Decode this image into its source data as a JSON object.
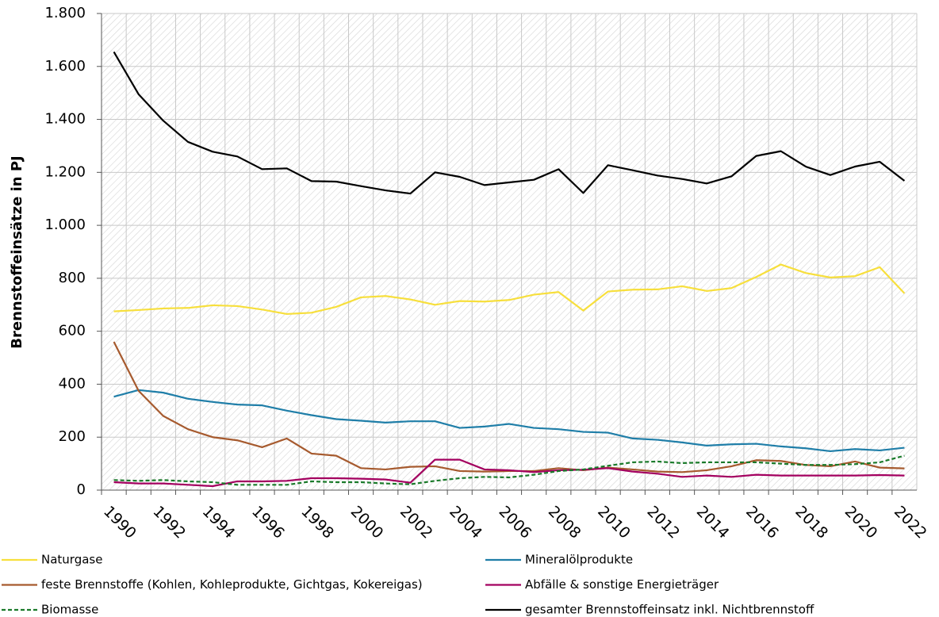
{
  "chart_data": {
    "type": "line",
    "y_label": "Brennstoffeinsätze in PJ",
    "categories": [
      "1990",
      null,
      "1992",
      null,
      "1994",
      null,
      "1996",
      null,
      "1998",
      null,
      "2000",
      null,
      "2002",
      null,
      "2004",
      null,
      "2006",
      null,
      "2008",
      null,
      "2010",
      null,
      "2012",
      null,
      "2014",
      null,
      "2016",
      null,
      "2018",
      null,
      "2020",
      null,
      "2022"
    ],
    "ylim": [
      0,
      1800
    ],
    "yticks": [
      0,
      200,
      400,
      600,
      800,
      {
        "value": 1000,
        "label": "1.000"
      },
      {
        "value": 1200,
        "label": "1.200"
      },
      {
        "value": 1400,
        "label": "1.400"
      },
      {
        "value": 1600,
        "label": "1.600"
      },
      {
        "value": 1800,
        "label": "1.800"
      }
    ],
    "grid": true,
    "legend": "bottom",
    "series": [
      {
        "name": "Naturgase",
        "color": "#f7df3c",
        "values": [
          675,
          680,
          686,
          688,
          698,
          695,
          682,
          665,
          670,
          692,
          728,
          733,
          720,
          700,
          714,
          712,
          718,
          738,
          748,
          678,
          750,
          757,
          758,
          770,
          752,
          763,
          805,
          852,
          820,
          803,
          808,
          842,
          743
        ]
      },
      {
        "name": "Mineralölprodukte",
        "color": "#1f7ea8",
        "values": [
          353,
          378,
          368,
          345,
          333,
          323,
          320,
          300,
          283,
          268,
          262,
          255,
          260,
          260,
          235,
          240,
          250,
          235,
          230,
          220,
          217,
          195,
          190,
          180,
          168,
          173,
          175,
          165,
          158,
          147,
          155,
          150,
          160
        ]
      },
      {
        "name": "feste Brennstoffe (Kohlen, Kohleprodukte, Gichtgas, Kokereigas)",
        "color": "#a65a2e",
        "values": [
          560,
          375,
          280,
          230,
          200,
          188,
          162,
          195,
          138,
          130,
          83,
          78,
          88,
          90,
          72,
          70,
          72,
          72,
          83,
          75,
          85,
          78,
          70,
          68,
          75,
          90,
          113,
          110,
          95,
          90,
          108,
          85,
          82
        ]
      },
      {
        "name": "Abfälle & sonstige Energieträger",
        "color": "#a3005f",
        "values": [
          30,
          25,
          25,
          20,
          15,
          33,
          33,
          35,
          45,
          45,
          43,
          40,
          28,
          115,
          115,
          78,
          75,
          68,
          75,
          77,
          83,
          70,
          62,
          50,
          55,
          50,
          58,
          55,
          55,
          55,
          55,
          57,
          55
        ]
      },
      {
        "name": "Biomasse",
        "color": "#1a7a2a",
        "dashed": true,
        "values": [
          38,
          35,
          38,
          33,
          30,
          20,
          20,
          20,
          33,
          30,
          30,
          25,
          22,
          35,
          45,
          50,
          48,
          58,
          72,
          78,
          92,
          105,
          108,
          102,
          105,
          105,
          105,
          100,
          95,
          95,
          98,
          105,
          130
        ]
      },
      {
        "name": "gesamter Brennstoffeinsatz inkl. Nichtbrennstoff",
        "color": "#000000",
        "values": [
          1655,
          1495,
          1395,
          1315,
          1278,
          1260,
          1212,
          1215,
          1167,
          1165,
          1148,
          1132,
          1120,
          1200,
          1183,
          1152,
          1162,
          1172,
          1212,
          1122,
          1227,
          1208,
          1188,
          1175,
          1158,
          1185,
          1262,
          1280,
          1222,
          1190,
          1222,
          1240,
          1168
        ]
      }
    ]
  }
}
